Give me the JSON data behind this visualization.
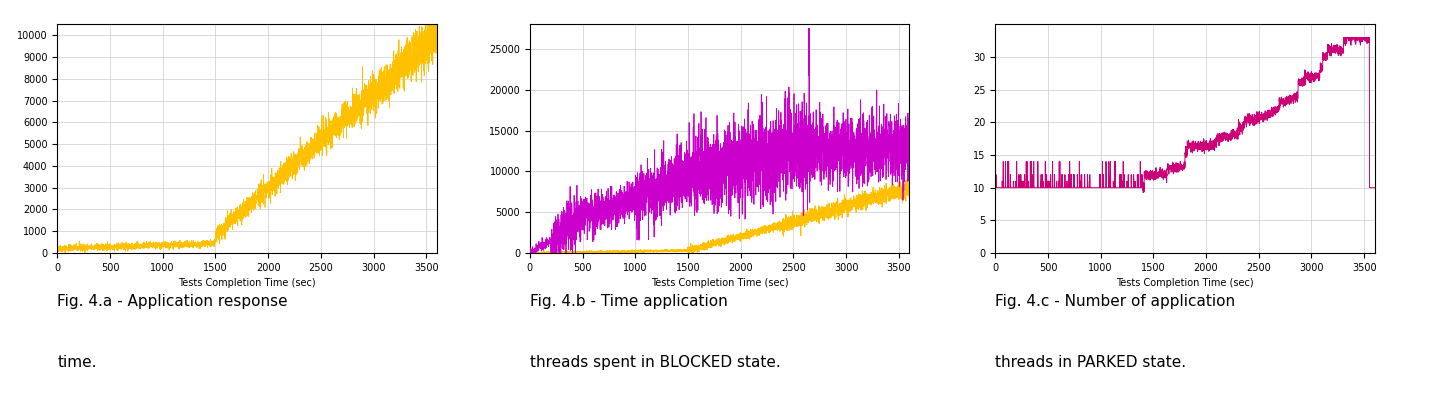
{
  "fig_width": 14.32,
  "fig_height": 4.08,
  "dpi": 100,
  "background_color": "#ffffff",
  "subplot_bg": "#ffffff",
  "grid_color": "#cccccc",
  "x_max": 3600,
  "x_ticks": [
    0,
    500,
    1000,
    1500,
    2000,
    2500,
    3000,
    3500
  ],
  "xlabel": "Tests Completion Time (sec)",
  "plot_a": {
    "color_main": "#FFC000",
    "ylim": [
      0,
      10500
    ],
    "yticks": [
      0,
      1000,
      2000,
      3000,
      4000,
      5000,
      6000,
      7000,
      8000,
      9000,
      10000
    ],
    "caption_line1": "Fig. 4.a - Application response",
    "caption_line2": "time."
  },
  "plot_b": {
    "color_purple": "#CC00CC",
    "color_orange": "#FFC000",
    "ylim": [
      0,
      28000
    ],
    "yticks": [
      0,
      5000,
      10000,
      15000,
      20000,
      25000
    ],
    "caption_line1": "Fig. 4.b - Time application",
    "caption_line2": "threads spent in BLOCKED state."
  },
  "plot_c": {
    "color_main": "#CC0077",
    "ylim": [
      0,
      35
    ],
    "yticks": [
      0,
      5,
      10,
      15,
      20,
      25,
      30
    ],
    "caption_line1": "Fig. 4.c - Number of application",
    "caption_line2": "threads in PARKED state."
  },
  "caption_fontsize": 11,
  "tick_fontsize": 7,
  "xlabel_fontsize": 7
}
